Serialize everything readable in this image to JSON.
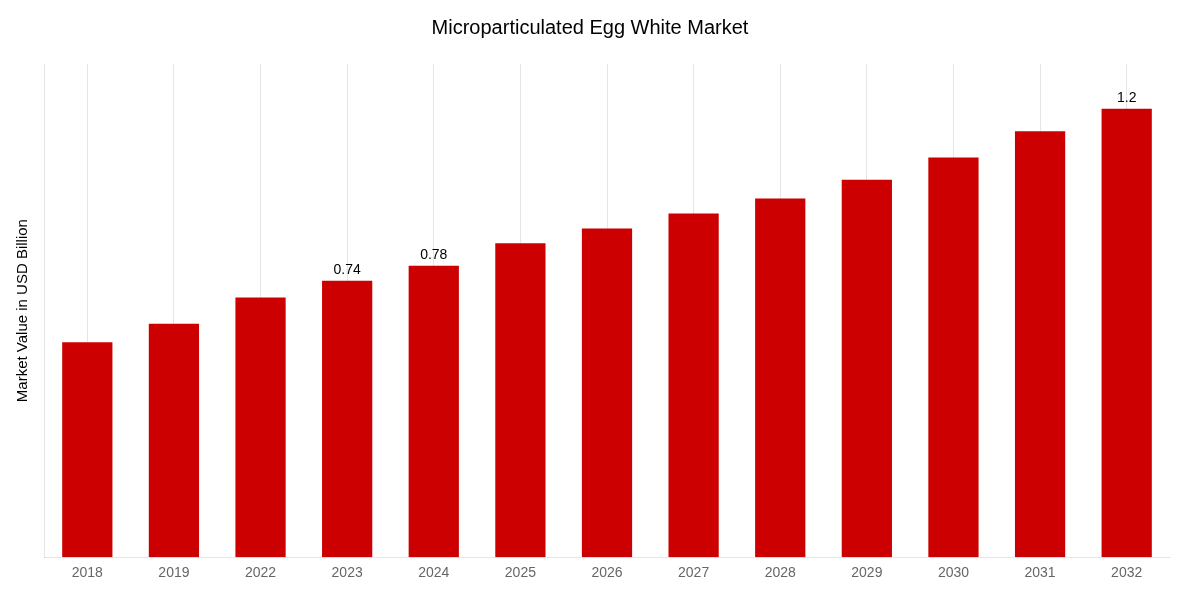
{
  "chart_data": {
    "type": "bar",
    "title": "Microparticulated Egg White Market",
    "ylabel": "Market Value in USD Billion",
    "categories": [
      "2018",
      "2019",
      "2022",
      "2023",
      "2024",
      "2025",
      "2026",
      "2027",
      "2028",
      "2029",
      "2030",
      "2031",
      "2032"
    ],
    "values": [
      0.575,
      0.625,
      0.695,
      0.74,
      0.78,
      0.84,
      0.88,
      0.92,
      0.96,
      1.01,
      1.07,
      1.14,
      1.2
    ],
    "color": "#cc0000",
    "ylim": [
      0,
      1.32
    ],
    "grid": "x",
    "tick_labels": "x",
    "annotations": [
      {
        "category": "2023",
        "text": "0.74"
      },
      {
        "category": "2024",
        "text": "0.78"
      },
      {
        "category": "2032",
        "text": "1.2"
      }
    ]
  }
}
